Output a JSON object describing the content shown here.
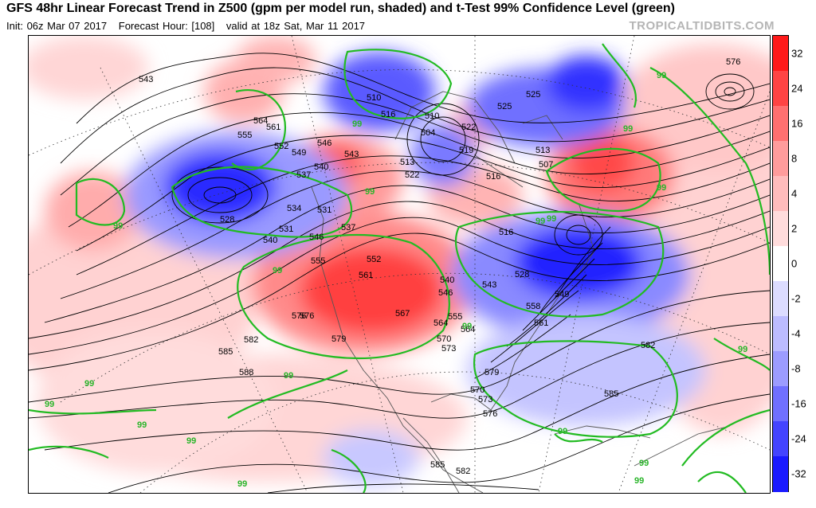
{
  "header": {
    "title": "GFS 48hr Linear Forecast Trend in Z500 (gpm per model run, shaded) and t-Test 99% Confidence Level (green)",
    "init": "Init: 06z Mar 07 2017",
    "forecast_hour": "Forecast Hour: [108]",
    "valid": "valid at 18z Sat, Mar 11 2017",
    "brand": "TROPICALTIDBITS.COM"
  },
  "colorbar": {
    "ticks": [
      "32",
      "24",
      "16",
      "8",
      "4",
      "2",
      "0",
      "-2",
      "-4",
      "-8",
      "-16",
      "-24",
      "-32"
    ],
    "colors": [
      "#ff1a1a",
      "#ff4444",
      "#ff7070",
      "#ff9c9c",
      "#ffbcbc",
      "#ffdcdc",
      "#ffffff",
      "#dcdcff",
      "#bcbcff",
      "#9c9cff",
      "#7070ff",
      "#4444ff",
      "#1a1aff"
    ]
  },
  "map": {
    "height_labels": [
      "543",
      "564",
      "561",
      "555",
      "552",
      "549",
      "546",
      "543",
      "540",
      "537",
      "534",
      "531",
      "528",
      "531",
      "540",
      "537",
      "546",
      "555",
      "552",
      "561",
      "567",
      "564",
      "570",
      "573",
      "576",
      "579",
      "582",
      "585",
      "588",
      "576",
      "582",
      "585",
      "510",
      "516",
      "504",
      "510",
      "522",
      "519",
      "513",
      "522",
      "525",
      "516",
      "507",
      "513",
      "525",
      "516",
      "528",
      "540",
      "543",
      "546",
      "549",
      "555",
      "558",
      "561",
      "564",
      "570",
      "573",
      "576",
      "579",
      "582",
      "585",
      "576"
    ],
    "confidence_label": "99"
  }
}
